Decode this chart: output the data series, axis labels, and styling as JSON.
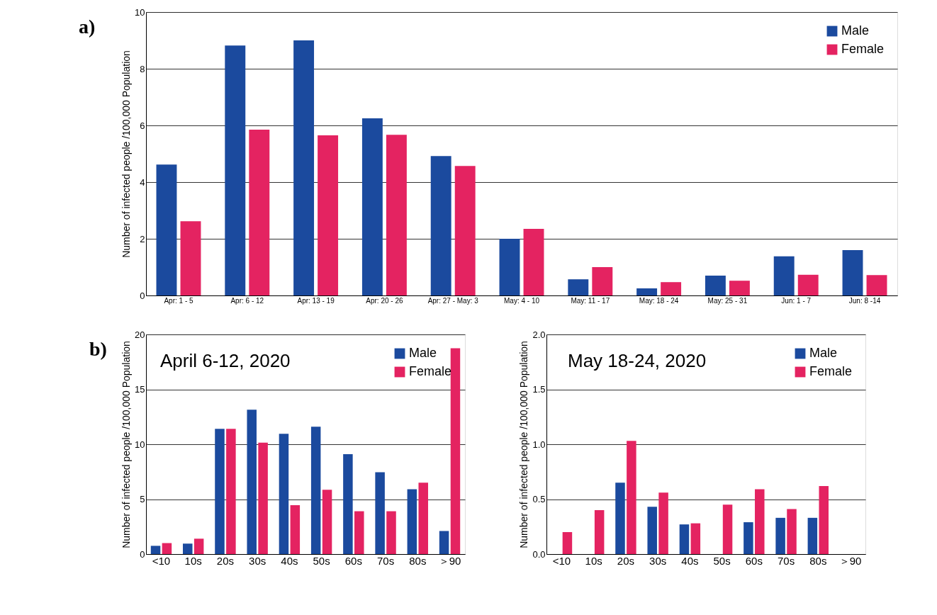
{
  "chart_data": [
    {
      "type": "bar",
      "annotations": [
        "a)"
      ],
      "ylabel": "Number of infected people /100,000 Population",
      "categories": [
        "Apr: 1 - 5",
        "Apr: 6 - 12",
        "Apr: 13 - 19",
        "Apr: 20 - 26",
        "Apr: 27 - May: 3",
        "May: 4 - 10",
        "May: 11 - 17",
        "May: 18 - 24",
        "May: 25 - 31",
        "Jun: 1 - 7",
        "Jun: 8 -14"
      ],
      "series": [
        {
          "name": "Male",
          "color": "#1b4a9e",
          "values": [
            4.62,
            8.82,
            9.0,
            6.25,
            4.92,
            2.0,
            0.57,
            0.25,
            0.7,
            1.38,
            1.6
          ]
        },
        {
          "name": "Female",
          "color": "#e42361",
          "values": [
            2.62,
            5.85,
            5.65,
            5.67,
            4.57,
            2.35,
            1.0,
            0.47,
            0.52,
            0.73,
            0.72
          ]
        }
      ],
      "ylim": [
        0,
        10
      ],
      "yticks": [
        0,
        2,
        4,
        6,
        8,
        10
      ],
      "grid": "y",
      "legend": "top right"
    },
    {
      "type": "bar",
      "title": "April 6-12, 2020",
      "annotations": [
        "b)"
      ],
      "ylabel": "Number of infected people /100,000 Population",
      "categories": [
        "<10",
        "10s",
        "20s",
        "30s",
        "40s",
        "50s",
        "60s",
        "70s",
        "80s",
        "＞90"
      ],
      "series": [
        {
          "name": "Male",
          "color": "#1b4a9e",
          "values": [
            0.75,
            0.95,
            11.4,
            13.15,
            10.95,
            11.6,
            9.1,
            7.45,
            5.9,
            2.1
          ]
        },
        {
          "name": "Female",
          "color": "#e42361",
          "values": [
            1.0,
            1.4,
            11.4,
            10.15,
            4.45,
            5.85,
            3.9,
            3.9,
            6.5,
            18.75
          ]
        }
      ],
      "ylim": [
        0,
        20
      ],
      "yticks": [
        0,
        5,
        10,
        15,
        20
      ],
      "grid": "y",
      "legend": "top right"
    },
    {
      "type": "bar",
      "title": "May 18-24, 2020",
      "ylabel": "Number of infected people /100,000 Population",
      "categories": [
        "<10",
        "10s",
        "20s",
        "30s",
        "40s",
        "50s",
        "60s",
        "70s",
        "80s",
        "＞90"
      ],
      "series": [
        {
          "name": "Male",
          "color": "#1b4a9e",
          "values": [
            0,
            0,
            0.65,
            0.43,
            0.27,
            0,
            0.29,
            0.33,
            0.33,
            0
          ]
        },
        {
          "name": "Female",
          "color": "#e42361",
          "values": [
            0.2,
            0.4,
            1.03,
            0.56,
            0.28,
            0.45,
            0.59,
            0.41,
            0.62,
            0
          ]
        }
      ],
      "ylim": [
        0,
        2
      ],
      "yticks": [
        {
          "value": 0,
          "label": "0.0"
        },
        {
          "value": 0.5,
          "label": "0.5"
        },
        {
          "value": 1,
          "label": "1.0"
        },
        {
          "value": 1.5,
          "label": "1.5"
        },
        {
          "value": 2,
          "label": "2.0"
        }
      ],
      "grid": "y",
      "legend": "top right"
    }
  ]
}
